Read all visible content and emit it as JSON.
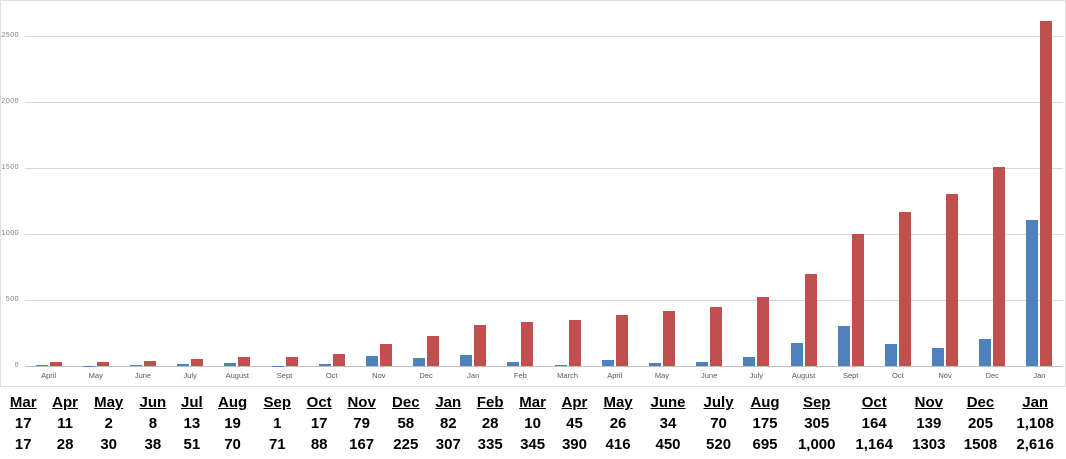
{
  "chart_data": {
    "type": "bar",
    "title": "",
    "xlabel": "",
    "ylabel": "",
    "categories": [
      "April",
      "May",
      "June",
      "July",
      "August",
      "Sept",
      "Oct",
      "Nov",
      "Dec",
      "Jan",
      "Feb",
      "March",
      "April",
      "May",
      "June",
      "July",
      "August",
      "Sept",
      "Oct",
      "Nov",
      "Dec",
      "Jan"
    ],
    "series": [
      {
        "name": "blue",
        "color": "#4F81BD",
        "values": [
          11,
          2,
          8,
          13,
          19,
          1,
          17,
          79,
          58,
          82,
          28,
          10,
          45,
          26,
          34,
          70,
          175,
          305,
          164,
          139,
          205,
          1108
        ]
      },
      {
        "name": "red",
        "color": "#C0504D",
        "values": [
          28,
          30,
          38,
          51,
          70,
          71,
          88,
          167,
          225,
          307,
          335,
          345,
          390,
          416,
          450,
          520,
          695,
          1000,
          1164,
          1303,
          1508,
          2616
        ]
      }
    ],
    "yticks": [
      0,
      500,
      1000,
      1500,
      2000,
      2500
    ],
    "ylim": [
      0,
      2750
    ],
    "grid": true,
    "legend": "none",
    "style": {
      "gridline_color": "#D9D9D9",
      "axis_line_color": "#BFBFBF",
      "x_label_color": "#595959",
      "y_label_color": "#808080",
      "background": "#FFFFFF"
    }
  },
  "table": {
    "headers": [
      "Mar",
      "Apr",
      "May",
      "Jun",
      "Jul",
      "Aug",
      "Sep",
      "Oct",
      "Nov",
      "Dec",
      "Jan",
      "Feb",
      "Mar",
      "Apr",
      "May",
      "June",
      "July",
      "Aug",
      "Sep",
      "Oct",
      "Nov",
      "Dec",
      "Jan"
    ],
    "rows": [
      [
        "17",
        "11",
        "2",
        "8",
        "13",
        "19",
        "1",
        "17",
        "79",
        "58",
        "82",
        "28",
        "10",
        "45",
        "26",
        "34",
        "70",
        "175",
        "305",
        "164",
        "139",
        "205",
        "1,108"
      ],
      [
        "17",
        "28",
        "30",
        "38",
        "51",
        "70",
        "71",
        "88",
        "167",
        "225",
        "307",
        "335",
        "345",
        "390",
        "416",
        "450",
        "520",
        "695",
        "1,000",
        "1,164",
        "1303",
        "1508",
        "2,616"
      ]
    ]
  }
}
